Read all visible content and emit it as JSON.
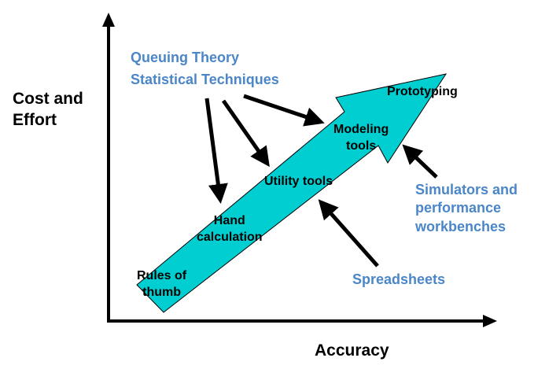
{
  "axes": {
    "y_label_line1": "Cost and",
    "y_label_line2": "Effort",
    "x_label": "Accuracy"
  },
  "stages": {
    "rules_line1": "Rules of",
    "rules_line2": "thumb",
    "hand_line1": "Hand",
    "hand_line2": "calculation",
    "utility": "Utility tools",
    "modeling_line1": "Modeling",
    "modeling_line2": "tools",
    "prototyping": "Prototyping"
  },
  "techniques": {
    "queuing": "Queuing Theory",
    "statistical": "Statistical Techniques",
    "simulators_line1": "Simulators and",
    "simulators_line2": "performance",
    "simulators_line3": "workbenches",
    "spreadsheets": "Spreadsheets"
  },
  "colors": {
    "arrow_fill": "#00ced1",
    "technique_text": "#4a86c8",
    "axis": "#000000"
  }
}
